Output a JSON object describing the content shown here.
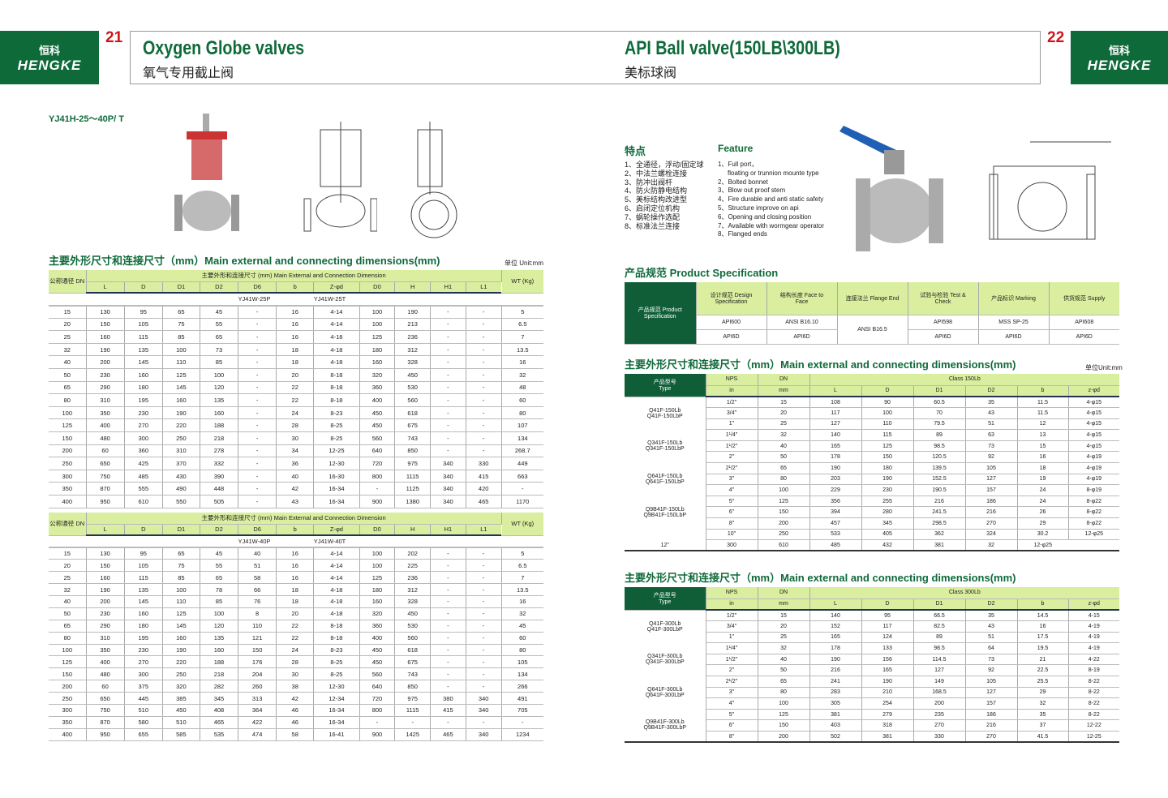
{
  "left": {
    "page_number": "21",
    "logo_cn": "恒科",
    "logo_en": "HENGKE",
    "title": "Oxygen Globe valves",
    "subtitle": "氧气专用截止阀",
    "model": "YJ41H-25～40P/ T",
    "section_title": "主要外形尺寸和连接尺寸（mm）Main external and connecting dimensions(mm)",
    "unit": "单位 Unit:mm",
    "table_header": {
      "dn": "公称通径 DN",
      "group": "主要外形和连接尺寸 (mm) Main External and Connection Dimension",
      "wt": "WT (Kg)",
      "cols": [
        "L",
        "D",
        "D1",
        "D2",
        "D6",
        "b",
        "Z-φd",
        "D0",
        "H",
        "H1",
        "L1"
      ]
    },
    "tables": [
      {
        "models": [
          "YJ41W-25P",
          "YJ41W-25T"
        ],
        "rows": [
          [
            "15",
            "130",
            "95",
            "65",
            "45",
            "-",
            "16",
            "4-14",
            "100",
            "190",
            "-",
            "-",
            "5"
          ],
          [
            "20",
            "150",
            "105",
            "75",
            "55",
            "-",
            "16",
            "4-14",
            "100",
            "213",
            "-",
            "-",
            "6.5"
          ],
          [
            "25",
            "160",
            "115",
            "85",
            "65",
            "-",
            "16",
            "4-18",
            "125",
            "236",
            "-",
            "-",
            "7"
          ],
          [
            "32",
            "190",
            "135",
            "100",
            "73",
            "-",
            "18",
            "4-18",
            "180",
            "312",
            "-",
            "-",
            "13.5"
          ],
          [
            "40",
            "200",
            "145",
            "110",
            "85",
            "-",
            "18",
            "4-18",
            "160",
            "328",
            "-",
            "-",
            "16"
          ],
          [
            "50",
            "230",
            "160",
            "125",
            "100",
            "-",
            "20",
            "8-18",
            "320",
            "450",
            "-",
            "-",
            "32"
          ],
          [
            "65",
            "290",
            "180",
            "145",
            "120",
            "-",
            "22",
            "8-18",
            "360",
            "530",
            "-",
            "-",
            "48"
          ],
          [
            "80",
            "310",
            "195",
            "160",
            "135",
            "-",
            "22",
            "8-18",
            "400",
            "560",
            "-",
            "-",
            "60"
          ],
          [
            "100",
            "350",
            "230",
            "190",
            "160",
            "-",
            "24",
            "8-23",
            "450",
            "618",
            "-",
            "-",
            "80"
          ],
          [
            "125",
            "400",
            "270",
            "220",
            "188",
            "-",
            "28",
            "8-25",
            "450",
            "675",
            "-",
            "-",
            "107"
          ],
          [
            "150",
            "480",
            "300",
            "250",
            "218",
            "-",
            "30",
            "8-25",
            "560",
            "743",
            "-",
            "-",
            "134"
          ],
          [
            "200",
            "60",
            "360",
            "310",
            "278",
            "-",
            "34",
            "12-25",
            "640",
            "850",
            "-",
            "-",
            "268.7"
          ],
          [
            "250",
            "650",
            "425",
            "370",
            "332",
            "-",
            "36",
            "12-30",
            "720",
            "975",
            "340",
            "330",
            "449"
          ],
          [
            "300",
            "750",
            "485",
            "430",
            "390",
            "-",
            "40",
            "16-30",
            "800",
            "1115",
            "340",
            "415",
            "663"
          ],
          [
            "350",
            "870",
            "555",
            "490",
            "448",
            "-",
            "42",
            "16-34",
            "-",
            "1125",
            "340",
            "420",
            "-"
          ],
          [
            "400",
            "950",
            "610",
            "550",
            "505",
            "-",
            "43",
            "16-34",
            "900",
            "1380",
            "340",
            "465",
            "1170"
          ]
        ]
      },
      {
        "models": [
          "YJ41W-40P",
          "YJ41W-40T"
        ],
        "rows": [
          [
            "15",
            "130",
            "95",
            "65",
            "45",
            "40",
            "16",
            "4-14",
            "100",
            "202",
            "-",
            "-",
            "5"
          ],
          [
            "20",
            "150",
            "105",
            "75",
            "55",
            "51",
            "16",
            "4-14",
            "100",
            "225",
            "-",
            "-",
            "6.5"
          ],
          [
            "25",
            "160",
            "115",
            "85",
            "65",
            "58",
            "16",
            "4-14",
            "125",
            "236",
            "-",
            "-",
            "7"
          ],
          [
            "32",
            "190",
            "135",
            "100",
            "78",
            "66",
            "18",
            "4-18",
            "180",
            "312",
            "-",
            "-",
            "13.5"
          ],
          [
            "40",
            "200",
            "145",
            "110",
            "85",
            "76",
            "18",
            "4-18",
            "160",
            "328",
            "-",
            "-",
            "16"
          ],
          [
            "50",
            "230",
            "160",
            "125",
            "100",
            "8",
            "20",
            "4-18",
            "320",
            "450",
            "-",
            "-",
            "32"
          ],
          [
            "65",
            "290",
            "180",
            "145",
            "120",
            "110",
            "22",
            "8-18",
            "360",
            "530",
            "-",
            "-",
            "45"
          ],
          [
            "80",
            "310",
            "195",
            "160",
            "135",
            "121",
            "22",
            "8-18",
            "400",
            "560",
            "-",
            "-",
            "60"
          ],
          [
            "100",
            "350",
            "230",
            "190",
            "160",
            "150",
            "24",
            "8-23",
            "450",
            "618",
            "-",
            "-",
            "80"
          ],
          [
            "125",
            "400",
            "270",
            "220",
            "188",
            "176",
            "28",
            "8-25",
            "450",
            "675",
            "-",
            "-",
            "105"
          ],
          [
            "150",
            "480",
            "300",
            "250",
            "218",
            "204",
            "30",
            "8-25",
            "560",
            "743",
            "-",
            "-",
            "134"
          ],
          [
            "200",
            "60",
            "375",
            "320",
            "282",
            "260",
            "38",
            "12-30",
            "640",
            "850",
            "-",
            "-",
            "266"
          ],
          [
            "250",
            "650",
            "445",
            "385",
            "345",
            "313",
            "42",
            "12-34",
            "720",
            "975",
            "380",
            "340",
            "491"
          ],
          [
            "300",
            "750",
            "510",
            "450",
            "408",
            "364",
            "46",
            "16-34",
            "800",
            "1115",
            "415",
            "340",
            "705"
          ],
          [
            "350",
            "870",
            "580",
            "510",
            "465",
            "422",
            "46",
            "16-34",
            "-",
            "-",
            "-",
            "-",
            "-"
          ],
          [
            "400",
            "950",
            "655",
            "585",
            "535",
            "474",
            "58",
            "16-41",
            "900",
            "1425",
            "465",
            "340",
            "1234"
          ]
        ]
      }
    ]
  },
  "right": {
    "page_number": "22",
    "logo_cn": "恒科",
    "logo_en": "HENGKE",
    "title": "API Ball valve(150LB\\300LB)",
    "subtitle": "美标球阀",
    "features_cn_title": "特点",
    "features_en_title": "Feature",
    "features_cn": [
      "1、全通径，浮动/固定球",
      "2、中法兰螺栓连接",
      "3、防冲出阀杆",
      "4、防火防静电结构",
      "5、美标结构改进型",
      "6、启闭定位机构",
      "7、蜗轮操作选配",
      "8、标准法兰连接"
    ],
    "features_en": [
      "1、Full port，",
      "floating or trunnion mounte type",
      "2、Bolted bonnet",
      "3、Blow out proof stem",
      "4、Fire durable and anti static safety",
      "5、Structure improve on api",
      "6、Opening and closing position",
      "7、Available with wormgear operator",
      "8、Flanged ends"
    ],
    "spec_title": "产品规范 Product Specification",
    "spec": {
      "row_head": "产品规范 Product Specification",
      "cols": [
        "设计规范 Design Specification",
        "结构长度 Face to Face",
        "连接法兰 Flange End",
        "试验与检验 Test & Check",
        "产品标识 Marking",
        "供货规范 Supply"
      ],
      "rows": [
        [
          "API600",
          "ANSI B16.10",
          "ANSI B16.5",
          "API598",
          "MSS SP-25",
          "API608"
        ],
        [
          "API6D",
          "API6D",
          "",
          "API6D",
          "API6D",
          "API6D"
        ]
      ]
    },
    "section_title": "主要外形尺寸和连接尺寸（mm）Main external and connecting dimensions(mm)",
    "unit": "单位Unit:mm",
    "dim_header": {
      "type": "产品型号 Type",
      "nps": "NPS",
      "dn": "DN",
      "in": "in",
      "mm": "mm",
      "cols": [
        "L",
        "D",
        "D1",
        "D2",
        "b",
        "z-φd"
      ]
    },
    "tables": [
      {
        "class": "Class 150Lb",
        "types": [
          "Q41F-150Lb Q41F-150LbP",
          "Q341F-150Lb Q341F-150LbP",
          "Q641F-150Lb Q641F-150LbP",
          "Q9B41F-150Lb Q9B41F-150LbP"
        ],
        "rows": [
          [
            "1/2\"",
            "15",
            "108",
            "90",
            "60.5",
            "35",
            "11.5",
            "4-φ15"
          ],
          [
            "3/4\"",
            "20",
            "117",
            "100",
            "70",
            "43",
            "11.5",
            "4-φ15"
          ],
          [
            "1\"",
            "25",
            "127",
            "110",
            "79.5",
            "51",
            "12",
            "4-φ15"
          ],
          [
            "1¹/4\"",
            "32",
            "140",
            "115",
            "89",
            "63",
            "13",
            "4-φ15"
          ],
          [
            "1¹/2\"",
            "40",
            "165",
            "125",
            "98.5",
            "73",
            "15",
            "4-φ15"
          ],
          [
            "2\"",
            "50",
            "178",
            "150",
            "120.5",
            "92",
            "16",
            "4-φ19"
          ],
          [
            "2¹/2\"",
            "65",
            "190",
            "180",
            "139.5",
            "105",
            "18",
            "4-φ19"
          ],
          [
            "3\"",
            "80",
            "203",
            "190",
            "152.5",
            "127",
            "19",
            "4-φ19"
          ],
          [
            "4\"",
            "100",
            "229",
            "230",
            "190.5",
            "157",
            "24",
            "8-φ19"
          ],
          [
            "5\"",
            "125",
            "356",
            "255",
            "216",
            "186",
            "24",
            "8-φ22"
          ],
          [
            "6\"",
            "150",
            "394",
            "280",
            "241.5",
            "216",
            "26",
            "8-φ22"
          ],
          [
            "8\"",
            "200",
            "457",
            "345",
            "298.5",
            "270",
            "29",
            "8-φ22"
          ],
          [
            "10\"",
            "250",
            "533",
            "405",
            "362",
            "324",
            "30.2",
            "12-φ25"
          ],
          [
            "12\"",
            "300",
            "610",
            "485",
            "432",
            "381",
            "32",
            "12-φ25"
          ]
        ]
      },
      {
        "class": "Class 300Lb",
        "types": [
          "Q41F-300Lb Q41F-300LbP",
          "Q341F-300Lb Q341F-300LbP",
          "Q641F-300Lb Q641F-300LbP",
          "Q9B41F-300Lb Q9B41F-300LbP"
        ],
        "rows": [
          [
            "1/2\"",
            "15",
            "140",
            "95",
            "66.5",
            "35",
            "14.5",
            "4-15"
          ],
          [
            "3/4\"",
            "20",
            "152",
            "117",
            "82.5",
            "43",
            "16",
            "4-19"
          ],
          [
            "1\"",
            "25",
            "165",
            "124",
            "89",
            "51",
            "17.5",
            "4-19"
          ],
          [
            "1¹/4\"",
            "32",
            "178",
            "133",
            "98.5",
            "64",
            "19.5",
            "4-19"
          ],
          [
            "1¹/2\"",
            "40",
            "190",
            "156",
            "114.5",
            "73",
            "21",
            "4-22"
          ],
          [
            "2\"",
            "50",
            "216",
            "165",
            "127",
            "92",
            "22.5",
            "8-19"
          ],
          [
            "2¹/2\"",
            "65",
            "241",
            "190",
            "149",
            "105",
            "25.5",
            "8-22"
          ],
          [
            "3\"",
            "80",
            "283",
            "210",
            "168.5",
            "127",
            "29",
            "8-22"
          ],
          [
            "4\"",
            "100",
            "305",
            "254",
            "200",
            "157",
            "32",
            "8-22"
          ],
          [
            "5\"",
            "125",
            "381",
            "279",
            "235",
            "186",
            "35",
            "8-22"
          ],
          [
            "6\"",
            "150",
            "403",
            "318",
            "270",
            "216",
            "37",
            "12-22"
          ],
          [
            "8\"",
            "200",
            "502",
            "381",
            "330",
            "270",
            "41.5",
            "12-25"
          ]
        ]
      }
    ]
  },
  "colors": {
    "brand_green": "#0f6a3a",
    "header_light_green": "#d9ee9e",
    "page_number_red": "#d0141c"
  }
}
